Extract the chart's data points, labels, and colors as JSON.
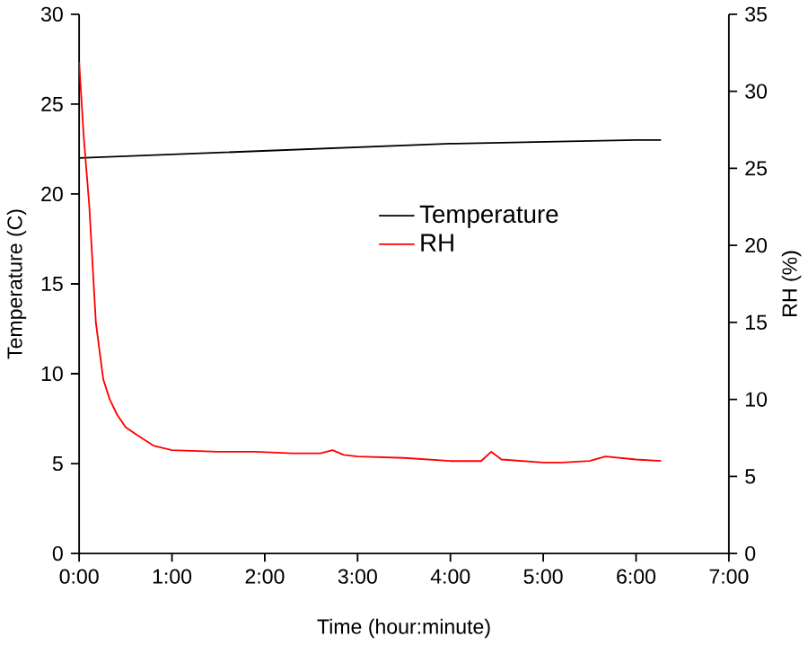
{
  "chart_data": {
    "type": "line",
    "xlabel": "Time (hour:minute)",
    "ylabel": "Temperature (C)",
    "y2label": "RH (%)",
    "xlim": [
      0,
      7
    ],
    "xticks": [
      {
        "value": 0,
        "label": "0:00"
      },
      {
        "value": 1,
        "label": "1:00"
      },
      {
        "value": 2,
        "label": "2:00"
      },
      {
        "value": 3,
        "label": "3:00"
      },
      {
        "value": 4,
        "label": "4:00"
      },
      {
        "value": 5,
        "label": "5:00"
      },
      {
        "value": 6,
        "label": "6:00"
      },
      {
        "value": 7,
        "label": "7:00"
      }
    ],
    "ylim": [
      0,
      30
    ],
    "yticks": [
      0,
      5,
      10,
      15,
      20,
      25,
      30
    ],
    "y2lim": [
      0,
      35
    ],
    "y2ticks": [
      0,
      5,
      10,
      15,
      20,
      25,
      30,
      35
    ],
    "legend": "center",
    "grid": false,
    "marker": "none",
    "series": [
      {
        "name": "Temperature",
        "color": "#000000",
        "x": [
          0,
          1,
          2,
          3,
          4,
          5,
          6,
          6.27
        ],
        "values": [
          22.0,
          22.2,
          22.4,
          22.6,
          22.8,
          22.9,
          23.0,
          23.0
        ]
      },
      {
        "name": "RH",
        "color": "#ff0000",
        "axis": "y2",
        "x": [
          0,
          0.05,
          0.11,
          0.18,
          0.26,
          0.33,
          0.41,
          0.5,
          0.62,
          0.8,
          1,
          1.5,
          1.9,
          2.3,
          2.6,
          2.73,
          2.85,
          3,
          3.5,
          4,
          4.33,
          4.44,
          4.55,
          5,
          5.2,
          5.5,
          5.67,
          6,
          6.27
        ],
        "values": [
          31.9,
          27,
          22.5,
          15,
          11.3,
          10,
          9.0,
          8.2,
          7.7,
          7.0,
          6.7,
          6.6,
          6.6,
          6.5,
          6.5,
          6.7,
          6.4,
          6.3,
          6.2,
          6.0,
          6.0,
          6.6,
          6.1,
          5.9,
          5.9,
          6.0,
          6.3,
          6.1,
          6.0
        ]
      }
    ]
  }
}
